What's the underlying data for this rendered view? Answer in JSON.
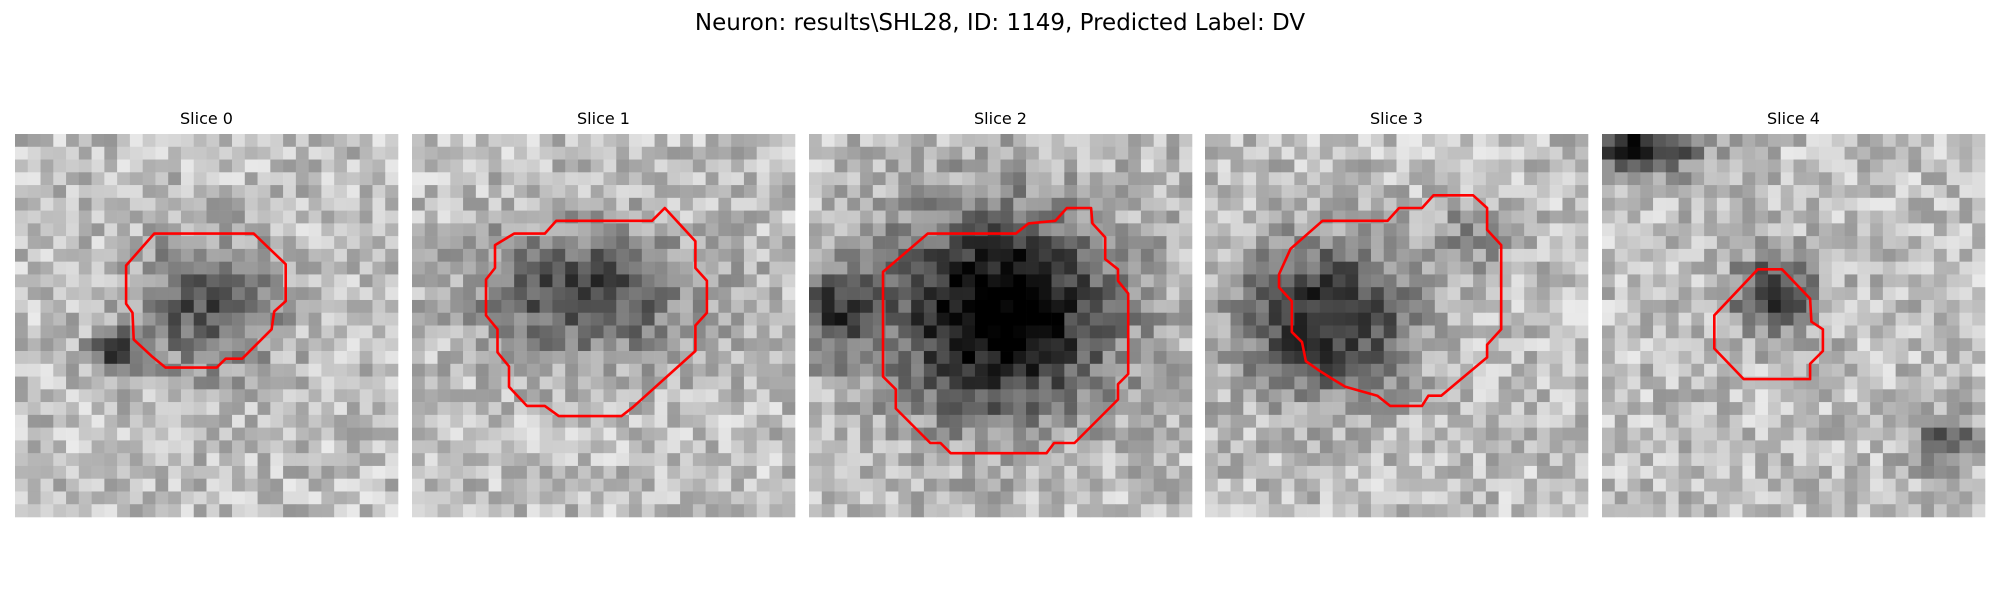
{
  "title": "Neuron: results\\SHL28, ID: 1149, Predicted Label: DV",
  "panels": [
    {
      "title": "Slice 0"
    },
    {
      "title": "Slice 1"
    },
    {
      "title": "Slice 2"
    },
    {
      "title": "Slice 3"
    },
    {
      "title": "Slice 4"
    }
  ]
}
